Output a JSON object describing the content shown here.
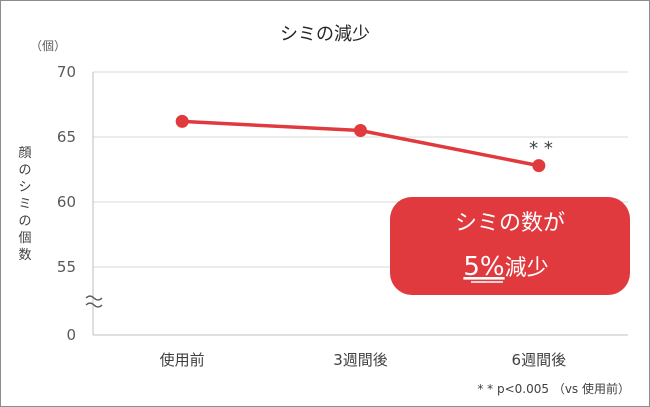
{
  "chart_data": {
    "type": "line",
    "title": "シミの減少",
    "unit_label": "（個）",
    "ylabel": "顔のシミの個数",
    "categories": [
      "使用前",
      "3週間後",
      "6週間後"
    ],
    "values": [
      66.2,
      65.5,
      62.8
    ],
    "ylim": [
      50,
      70
    ],
    "y_break": true,
    "yticks": [
      0,
      55,
      60,
      65,
      70
    ],
    "grid": true,
    "line_color": "#e0393e",
    "significance_mark": "* *",
    "footnote": "* * p<0.005 （vs 使用前）",
    "callout": {
      "line1": "シミの数が",
      "line2_number": "5%",
      "line2_text": "減少",
      "color": "#e0393e"
    }
  }
}
